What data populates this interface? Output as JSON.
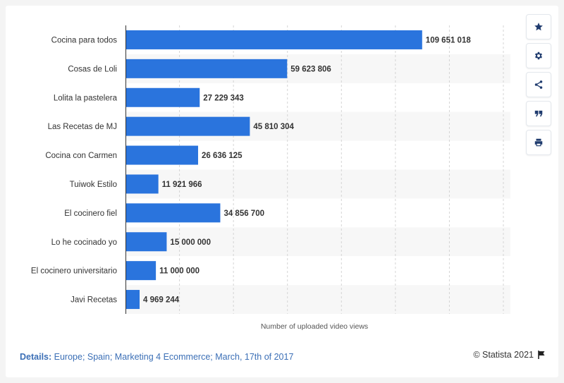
{
  "chart_data": {
    "type": "bar",
    "orientation": "horizontal",
    "categories": [
      "Cocina para todos",
      "Cosas de Loli",
      "Lolita la pastelera",
      "Las Recetas de MJ",
      "Cocina con Carmen",
      "Tuiwok Estilo",
      "El cocinero fiel",
      "Lo he cocinado yo",
      "El cocinero universitario",
      "Javi Recetas"
    ],
    "values": [
      109651018,
      59623806,
      27229343,
      45810304,
      26636125,
      11921966,
      34856700,
      15000000,
      11000000,
      4969244
    ],
    "value_labels": [
      "109 651 018",
      "59 623 806",
      "27 229 343",
      "45 810 304",
      "26 636 125",
      "11 921 966",
      "34 856 700",
      "15 000 000",
      "11 000 000",
      "4 969 244"
    ],
    "xlabel": "Number of uploaded video views",
    "xlim": [
      0,
      140000000
    ],
    "gridline_values": [
      0,
      20000000,
      40000000,
      60000000,
      80000000,
      100000000,
      120000000,
      140000000
    ],
    "grid": true,
    "bar_color": "#2a74dd",
    "band_color": "#f7f7f7"
  },
  "toolbar": {
    "items": [
      {
        "name": "star-icon"
      },
      {
        "name": "gear-icon"
      },
      {
        "name": "share-icon"
      },
      {
        "name": "quote-icon"
      },
      {
        "name": "print-icon"
      }
    ]
  },
  "footer": {
    "details_label": "Details:",
    "details_text": "Europe; Spain; Marketing 4 Ecommerce; March, 17th of 2017",
    "copyright": "© Statista 2021"
  }
}
